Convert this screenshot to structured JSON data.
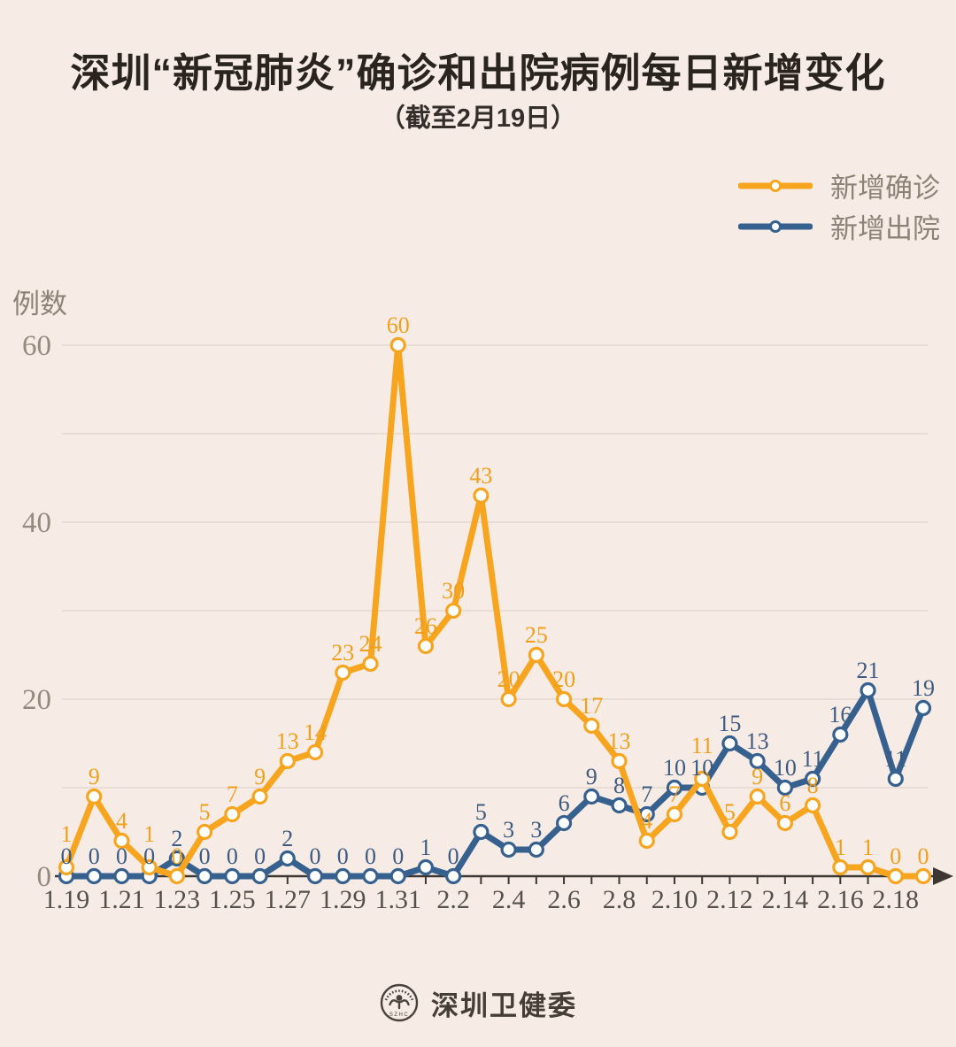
{
  "header": {
    "title": "深圳“新冠肺炎”确诊和出院病例每日新增变化",
    "subtitle": "（截至2月19日）"
  },
  "legend": [
    {
      "label": "新增确诊",
      "color": "#f7a41e"
    },
    {
      "label": "新增出院",
      "color": "#36608d"
    }
  ],
  "chart_data": {
    "type": "line",
    "title": "深圳“新冠肺炎”确诊和出院病例每日新增变化",
    "subtitle": "（截至2月19日）",
    "ylabel": "例数",
    "xlabel": "",
    "ylim": [
      0,
      60
    ],
    "yticks": [
      0,
      20,
      40,
      60
    ],
    "grid": true,
    "grid_step": 10,
    "legend_position": "top-right",
    "marker": "circle-white",
    "x_axis_arrow": true,
    "xtick_every": 2,
    "categories": [
      "1.19",
      "1.20",
      "1.21",
      "1.22",
      "1.23",
      "1.24",
      "1.25",
      "1.26",
      "1.27",
      "1.28",
      "1.29",
      "1.30",
      "1.31",
      "2.1",
      "2.2",
      "2.3",
      "2.4",
      "2.5",
      "2.6",
      "2.7",
      "2.8",
      "2.9",
      "2.10",
      "2.11",
      "2.12",
      "2.13",
      "2.14",
      "2.15",
      "2.16",
      "2.17",
      "2.18",
      "2.19"
    ],
    "xtick_labels": [
      "1.19",
      "1.21",
      "1.23",
      "1.25",
      "1.27",
      "1.29",
      "1.31",
      "2.2",
      "2.4",
      "2.6",
      "2.8",
      "2.10",
      "2.12",
      "2.14",
      "2.16",
      "2.18"
    ],
    "series": [
      {
        "name": "新增确诊",
        "color": "#f7a41e",
        "label_color": "#ef9f1c",
        "values": [
          1,
          9,
          4,
          1,
          0,
          5,
          7,
          9,
          13,
          14,
          23,
          24,
          60,
          26,
          30,
          43,
          20,
          25,
          20,
          17,
          13,
          4,
          7,
          11,
          5,
          9,
          6,
          8,
          1,
          1,
          0,
          0
        ]
      },
      {
        "name": "新增出院",
        "color": "#36608d",
        "label_color": "#3d5b82",
        "values": [
          0,
          0,
          0,
          0,
          2,
          0,
          0,
          0,
          2,
          0,
          0,
          0,
          0,
          1,
          0,
          5,
          3,
          3,
          6,
          9,
          8,
          7,
          10,
          10,
          15,
          13,
          10,
          11,
          16,
          21,
          11,
          19
        ]
      }
    ],
    "colors": {
      "background": "#f7ece5",
      "grid": "#e4d9d1",
      "axis": "#3c3732",
      "ytick_text": "#93897d",
      "xtick_text": "#55504b"
    }
  },
  "footer": {
    "org": "深圳卫健委",
    "seal_text": "SZHC"
  }
}
